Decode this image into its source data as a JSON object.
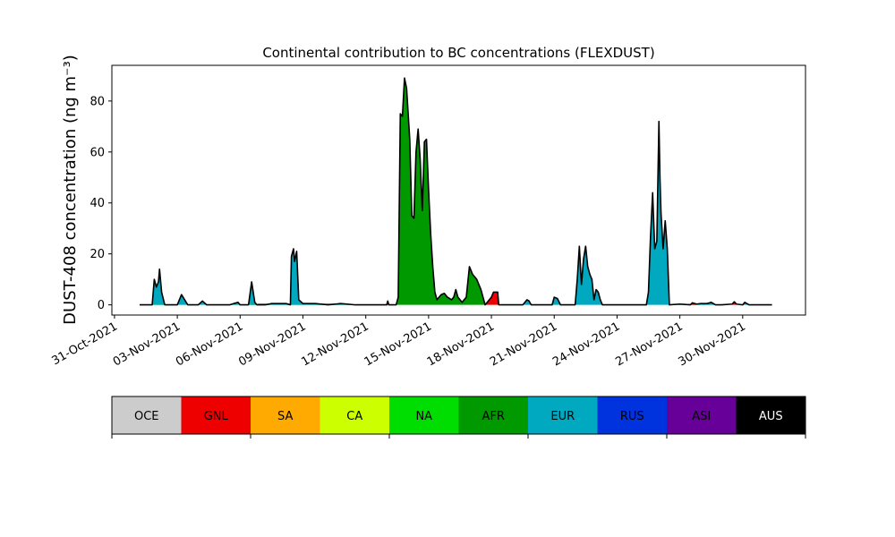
{
  "chart_data": {
    "type": "area",
    "title": "Continental contribution to BC concentrations (FLEXDUST)",
    "ylabel": "DUST-408 concentration (ng m⁻³)",
    "xlabel": "",
    "ylim": [
      -4,
      94
    ],
    "xlim": [
      "2021-10-30T21:00",
      "2021-12-04T00:00"
    ],
    "yticks": [
      0,
      20,
      40,
      60,
      80
    ],
    "xticks": [
      "31-Oct-2021",
      "03-Nov-2021",
      "06-Nov-2021",
      "09-Nov-2021",
      "12-Nov-2021",
      "15-Nov-2021",
      "18-Nov-2021",
      "21-Nov-2021",
      "24-Nov-2021",
      "27-Nov-2021",
      "30-Nov-2021"
    ],
    "grid": false,
    "legend_placement": "bottom-colorbar",
    "series": [
      {
        "key": "ca",
        "color": "#ccff00",
        "points": [
          [
            1.2,
            0
          ],
          [
            1.8,
            0
          ],
          [
            2.0,
            3
          ],
          [
            2.2,
            2
          ],
          [
            2.35,
            0
          ],
          [
            6.5,
            0
          ],
          [
            6.6,
            2
          ],
          [
            6.7,
            0
          ]
        ]
      },
      {
        "key": "na",
        "color": "#00dd00",
        "points": [
          [
            1.2,
            0
          ],
          [
            1.8,
            0
          ],
          [
            1.9,
            8
          ],
          [
            2.0,
            6
          ],
          [
            2.1,
            7
          ],
          [
            2.2,
            4
          ],
          [
            2.3,
            1
          ],
          [
            2.4,
            0
          ],
          [
            5.7,
            0
          ],
          [
            5.9,
            1
          ],
          [
            6.0,
            0
          ],
          [
            6.4,
            0
          ],
          [
            6.55,
            5
          ],
          [
            6.7,
            0.5
          ],
          [
            6.8,
            0
          ]
        ]
      },
      {
        "key": "afr",
        "color": "#009900",
        "points": [
          [
            1.2,
            0
          ],
          [
            6.5,
            0
          ],
          [
            6.9,
            0.5
          ],
          [
            7.2,
            0.5
          ],
          [
            7.7,
            0.5
          ],
          [
            8.3,
            0.5
          ],
          [
            9.5,
            0.5
          ],
          [
            10.5,
            0.5
          ],
          [
            11.5,
            0
          ],
          [
            13.0,
            0
          ],
          [
            13.45,
            0
          ],
          [
            13.55,
            3
          ],
          [
            13.65,
            75
          ],
          [
            13.75,
            74
          ],
          [
            13.85,
            89
          ],
          [
            13.95,
            85
          ],
          [
            14.1,
            65
          ],
          [
            14.2,
            35
          ],
          [
            14.3,
            34
          ],
          [
            14.4,
            60
          ],
          [
            14.5,
            69
          ],
          [
            14.6,
            57
          ],
          [
            14.7,
            37
          ],
          [
            14.8,
            64
          ],
          [
            14.9,
            65
          ],
          [
            15.0,
            45
          ],
          [
            15.1,
            28
          ],
          [
            15.2,
            15
          ],
          [
            15.3,
            5
          ],
          [
            15.4,
            2
          ],
          [
            15.6,
            4
          ],
          [
            15.75,
            4.5
          ],
          [
            15.9,
            3
          ],
          [
            16.1,
            2
          ],
          [
            16.2,
            3
          ],
          [
            16.3,
            6
          ],
          [
            16.4,
            3
          ],
          [
            16.6,
            1
          ],
          [
            16.8,
            3
          ],
          [
            16.95,
            15
          ],
          [
            17.1,
            12
          ],
          [
            17.3,
            10
          ],
          [
            17.5,
            6
          ],
          [
            17.7,
            0
          ],
          [
            18.0,
            0
          ],
          [
            19.5,
            0
          ],
          [
            26.5,
            0
          ],
          [
            27.0,
            0.3
          ],
          [
            28.0,
            0.5
          ],
          [
            28.3,
            0.5
          ],
          [
            28.5,
            1
          ],
          [
            28.7,
            0
          ]
        ]
      },
      {
        "key": "eur",
        "color": "#00a8c0",
        "points": [
          [
            1.2,
            0
          ],
          [
            1.8,
            0
          ],
          [
            1.9,
            10
          ],
          [
            2.0,
            7
          ],
          [
            2.1,
            9
          ],
          [
            2.15,
            14
          ],
          [
            2.25,
            5
          ],
          [
            2.4,
            0
          ],
          [
            2.5,
            0
          ],
          [
            3.0,
            0
          ],
          [
            3.2,
            4
          ],
          [
            3.5,
            0
          ],
          [
            4.0,
            0
          ],
          [
            4.2,
            1.5
          ],
          [
            4.4,
            0
          ],
          [
            5.5,
            0
          ],
          [
            5.7,
            0.5
          ],
          [
            5.9,
            1
          ],
          [
            6.0,
            0
          ],
          [
            6.4,
            0
          ],
          [
            6.55,
            9
          ],
          [
            6.7,
            1
          ],
          [
            6.8,
            0
          ],
          [
            7.2,
            0
          ],
          [
            7.5,
            0.5
          ],
          [
            8.2,
            0.5
          ],
          [
            8.4,
            0
          ],
          [
            8.45,
            19
          ],
          [
            8.55,
            22
          ],
          [
            8.6,
            17
          ],
          [
            8.7,
            21
          ],
          [
            8.8,
            2
          ],
          [
            9.0,
            0.5
          ],
          [
            9.3,
            0.5
          ],
          [
            9.6,
            0.5
          ],
          [
            10.2,
            0
          ],
          [
            10.8,
            0.5
          ],
          [
            11.5,
            0
          ],
          [
            13.0,
            0
          ],
          [
            13.05,
            1.5
          ],
          [
            13.1,
            0
          ],
          [
            13.45,
            0
          ],
          [
            19.5,
            0
          ],
          [
            19.7,
            2
          ],
          [
            19.8,
            1.5
          ],
          [
            19.9,
            0
          ],
          [
            20.2,
            0
          ],
          [
            20.9,
            0
          ],
          [
            21.0,
            3
          ],
          [
            21.15,
            2.5
          ],
          [
            21.3,
            0
          ],
          [
            22.0,
            0
          ],
          [
            22.1,
            10
          ],
          [
            22.2,
            23
          ],
          [
            22.3,
            8
          ],
          [
            22.4,
            18
          ],
          [
            22.5,
            23
          ],
          [
            22.6,
            15
          ],
          [
            22.7,
            12
          ],
          [
            22.8,
            10
          ],
          [
            22.9,
            2
          ],
          [
            23.0,
            6
          ],
          [
            23.1,
            5
          ],
          [
            23.2,
            2
          ],
          [
            23.3,
            0
          ],
          [
            24.5,
            0
          ],
          [
            25.4,
            0
          ],
          [
            25.5,
            5
          ],
          [
            25.6,
            27
          ],
          [
            25.7,
            44
          ],
          [
            25.8,
            22
          ],
          [
            25.9,
            25
          ],
          [
            26.0,
            72
          ],
          [
            26.05,
            50
          ],
          [
            26.1,
            36
          ],
          [
            26.2,
            22
          ],
          [
            26.3,
            33
          ],
          [
            26.4,
            22
          ],
          [
            26.5,
            0
          ],
          [
            27.0,
            0.3
          ],
          [
            28.0,
            0.5
          ],
          [
            28.3,
            0.5
          ],
          [
            28.5,
            1
          ],
          [
            28.7,
            0
          ],
          [
            29.0,
            0
          ],
          [
            30.0,
            0
          ],
          [
            30.1,
            1
          ],
          [
            30.3,
            0
          ],
          [
            30.5,
            0
          ]
        ]
      },
      {
        "key": "gnl",
        "color": "#ee0000",
        "points": [
          [
            1.2,
            0
          ],
          [
            17.7,
            0
          ],
          [
            18.0,
            3
          ],
          [
            18.1,
            5
          ],
          [
            18.3,
            5
          ],
          [
            18.35,
            0
          ],
          [
            26.5,
            0
          ],
          [
            27.5,
            0
          ],
          [
            27.6,
            0.8
          ],
          [
            27.8,
            0
          ],
          [
            29.5,
            0
          ],
          [
            29.6,
            1
          ],
          [
            29.7,
            0
          ],
          [
            30.5,
            0
          ]
        ]
      }
    ],
    "total": {
      "color": "#000000",
      "points": [
        [
          1.2,
          0
        ],
        [
          1.8,
          0
        ],
        [
          1.9,
          10
        ],
        [
          2.0,
          7
        ],
        [
          2.1,
          9
        ],
        [
          2.15,
          14
        ],
        [
          2.25,
          5
        ],
        [
          2.4,
          0
        ],
        [
          3.0,
          0
        ],
        [
          3.2,
          4
        ],
        [
          3.5,
          0
        ],
        [
          4.0,
          0
        ],
        [
          4.2,
          1.5
        ],
        [
          4.4,
          0
        ],
        [
          5.5,
          0
        ],
        [
          5.7,
          0.5
        ],
        [
          5.9,
          1
        ],
        [
          6.0,
          0
        ],
        [
          6.4,
          0
        ],
        [
          6.55,
          9
        ],
        [
          6.7,
          1
        ],
        [
          6.8,
          0
        ],
        [
          7.2,
          0
        ],
        [
          7.5,
          0.5
        ],
        [
          8.2,
          0.5
        ],
        [
          8.4,
          0
        ],
        [
          8.45,
          19
        ],
        [
          8.55,
          22
        ],
        [
          8.6,
          17
        ],
        [
          8.7,
          21
        ],
        [
          8.8,
          2
        ],
        [
          9.0,
          0.5
        ],
        [
          9.3,
          0.5
        ],
        [
          9.6,
          0.5
        ],
        [
          10.2,
          0
        ],
        [
          10.8,
          0.5
        ],
        [
          11.5,
          0
        ],
        [
          13.0,
          0
        ],
        [
          13.05,
          1.5
        ],
        [
          13.1,
          0
        ],
        [
          13.45,
          0
        ],
        [
          13.55,
          3
        ],
        [
          13.65,
          75
        ],
        [
          13.75,
          74
        ],
        [
          13.85,
          89
        ],
        [
          13.95,
          85
        ],
        [
          14.1,
          65
        ],
        [
          14.2,
          35
        ],
        [
          14.3,
          34
        ],
        [
          14.4,
          60
        ],
        [
          14.5,
          69
        ],
        [
          14.6,
          57
        ],
        [
          14.7,
          37
        ],
        [
          14.8,
          64
        ],
        [
          14.9,
          65
        ],
        [
          15.0,
          45
        ],
        [
          15.1,
          28
        ],
        [
          15.2,
          15
        ],
        [
          15.3,
          5
        ],
        [
          15.4,
          2
        ],
        [
          15.6,
          4
        ],
        [
          15.75,
          4.5
        ],
        [
          15.9,
          3
        ],
        [
          16.1,
          2
        ],
        [
          16.2,
          3
        ],
        [
          16.3,
          6
        ],
        [
          16.4,
          3
        ],
        [
          16.6,
          1
        ],
        [
          16.8,
          3
        ],
        [
          16.95,
          15
        ],
        [
          17.1,
          12
        ],
        [
          17.3,
          10
        ],
        [
          17.5,
          6
        ],
        [
          17.7,
          0
        ],
        [
          18.0,
          3
        ],
        [
          18.1,
          5
        ],
        [
          18.3,
          5
        ],
        [
          18.35,
          0
        ],
        [
          19.5,
          0
        ],
        [
          19.7,
          2
        ],
        [
          19.8,
          1.5
        ],
        [
          19.9,
          0
        ],
        [
          20.2,
          0
        ],
        [
          20.9,
          0
        ],
        [
          21.0,
          3
        ],
        [
          21.15,
          2.5
        ],
        [
          21.3,
          0
        ],
        [
          22.0,
          0
        ],
        [
          22.1,
          10
        ],
        [
          22.2,
          23
        ],
        [
          22.3,
          8
        ],
        [
          22.4,
          18
        ],
        [
          22.5,
          23
        ],
        [
          22.6,
          15
        ],
        [
          22.7,
          12
        ],
        [
          22.8,
          10
        ],
        [
          22.9,
          2
        ],
        [
          23.0,
          6
        ],
        [
          23.1,
          5
        ],
        [
          23.2,
          2
        ],
        [
          23.3,
          0
        ],
        [
          24.5,
          0
        ],
        [
          25.4,
          0
        ],
        [
          25.5,
          5
        ],
        [
          25.6,
          27
        ],
        [
          25.7,
          44
        ],
        [
          25.8,
          22
        ],
        [
          25.9,
          25
        ],
        [
          26.0,
          72
        ],
        [
          26.05,
          50
        ],
        [
          26.1,
          36
        ],
        [
          26.2,
          22
        ],
        [
          26.3,
          33
        ],
        [
          26.4,
          22
        ],
        [
          26.5,
          0
        ],
        [
          27.0,
          0.3
        ],
        [
          27.5,
          0
        ],
        [
          27.6,
          0.8
        ],
        [
          27.8,
          0.3
        ],
        [
          28.0,
          0.5
        ],
        [
          28.3,
          0.5
        ],
        [
          28.5,
          1
        ],
        [
          28.7,
          0
        ],
        [
          29.0,
          0
        ],
        [
          29.5,
          0.3
        ],
        [
          29.6,
          1.2
        ],
        [
          29.7,
          0.3
        ],
        [
          30.0,
          0
        ],
        [
          30.1,
          1
        ],
        [
          30.3,
          0
        ],
        [
          31.4,
          0
        ]
      ]
    },
    "x_axis_origin_date": "2021-10-31",
    "colorbar": {
      "items": [
        {
          "label": "OCE",
          "color": "#cccccc",
          "text_color": "#000000"
        },
        {
          "label": "GNL",
          "color": "#ee0000",
          "text_color": "#000000"
        },
        {
          "label": "SA",
          "color": "#ffaa00",
          "text_color": "#000000"
        },
        {
          "label": "CA",
          "color": "#ccff00",
          "text_color": "#000000"
        },
        {
          "label": "NA",
          "color": "#00dd00",
          "text_color": "#000000"
        },
        {
          "label": "AFR",
          "color": "#009900",
          "text_color": "#000000"
        },
        {
          "label": "EUR",
          "color": "#00a8c0",
          "text_color": "#000000"
        },
        {
          "label": "RUS",
          "color": "#0033dd",
          "text_color": "#000000"
        },
        {
          "label": "ASI",
          "color": "#660099",
          "text_color": "#000000"
        },
        {
          "label": "AUS",
          "color": "#000000",
          "text_color": "#ffffff"
        }
      ]
    }
  }
}
